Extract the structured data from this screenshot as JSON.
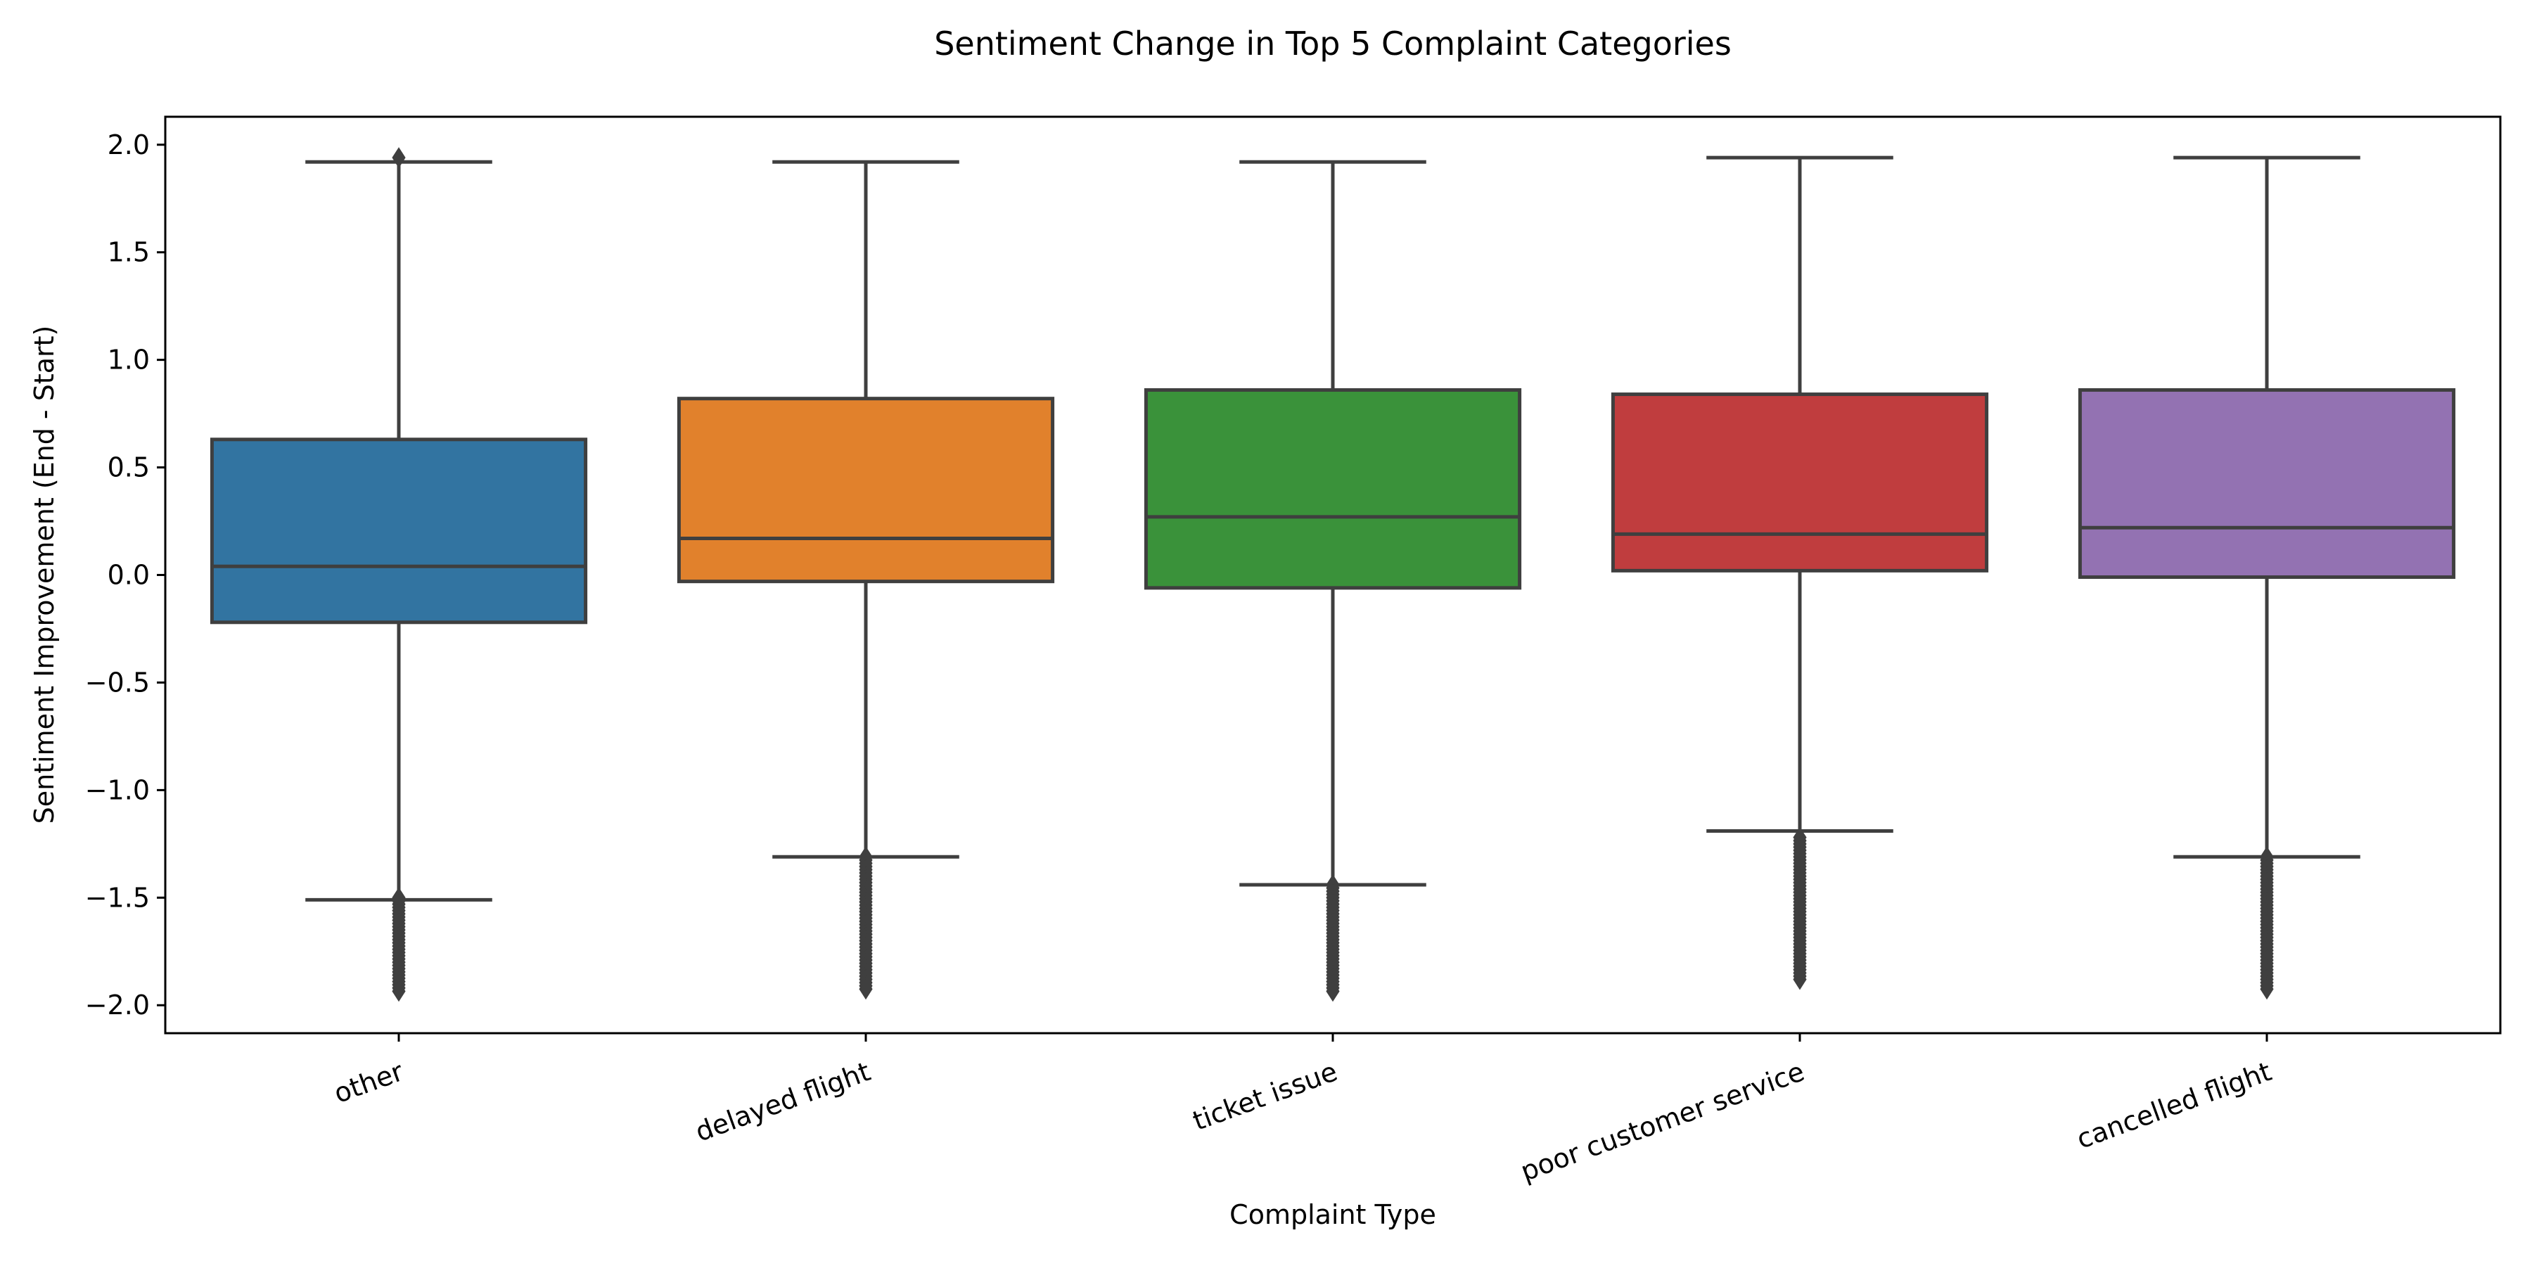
{
  "chart_data": {
    "type": "box",
    "title": "Sentiment Change in Top 5 Complaint Categories",
    "xlabel": "Complaint Type",
    "ylabel": "Sentiment Improvement (End - Start)",
    "ylim": [
      -2.13,
      2.13
    ],
    "yticks": [
      2.0,
      1.5,
      1.0,
      0.5,
      0.0,
      -0.5,
      -1.0,
      -1.5,
      -2.0
    ],
    "ytick_labels": [
      "2.0",
      "1.5",
      "1.0",
      "0.5",
      "0.0",
      "−0.5",
      "−1.0",
      "−1.5",
      "−2.0"
    ],
    "grid": false,
    "legend": "none",
    "categories": [
      "other",
      "delayed flight",
      "ticket issue",
      "poor customer service",
      "cancelled flight"
    ],
    "boxes": [
      {
        "category": "other",
        "color": "#3274a1",
        "whisker_low": -1.51,
        "q1": -0.22,
        "median": 0.04,
        "q3": 0.63,
        "whisker_high": 1.92,
        "outliers_low_range": [
          -1.94,
          -1.5
        ],
        "outliers_high": [
          1.94
        ]
      },
      {
        "category": "delayed flight",
        "color": "#e1812c",
        "whisker_low": -1.31,
        "q1": -0.03,
        "median": 0.17,
        "q3": 0.82,
        "whisker_high": 1.92,
        "outliers_low_range": [
          -1.93,
          -1.31
        ],
        "outliers_high": []
      },
      {
        "category": "ticket issue",
        "color": "#3a923a",
        "whisker_low": -1.44,
        "q1": -0.06,
        "median": 0.27,
        "q3": 0.86,
        "whisker_high": 1.92,
        "outliers_low_range": [
          -1.94,
          -1.44
        ],
        "outliers_high": []
      },
      {
        "category": "poor customer service",
        "color": "#c03d3e",
        "whisker_low": -1.19,
        "q1": 0.02,
        "median": 0.19,
        "q3": 0.84,
        "whisker_high": 1.94,
        "outliers_low_range": [
          -1.88,
          -1.22
        ],
        "outliers_high": []
      },
      {
        "category": "cancelled flight",
        "color": "#9372b2",
        "whisker_low": -1.31,
        "q1": -0.01,
        "median": 0.22,
        "q3": 0.86,
        "whisker_high": 1.94,
        "outliers_low_range": [
          -1.93,
          -1.31
        ],
        "outliers_high": []
      }
    ]
  }
}
